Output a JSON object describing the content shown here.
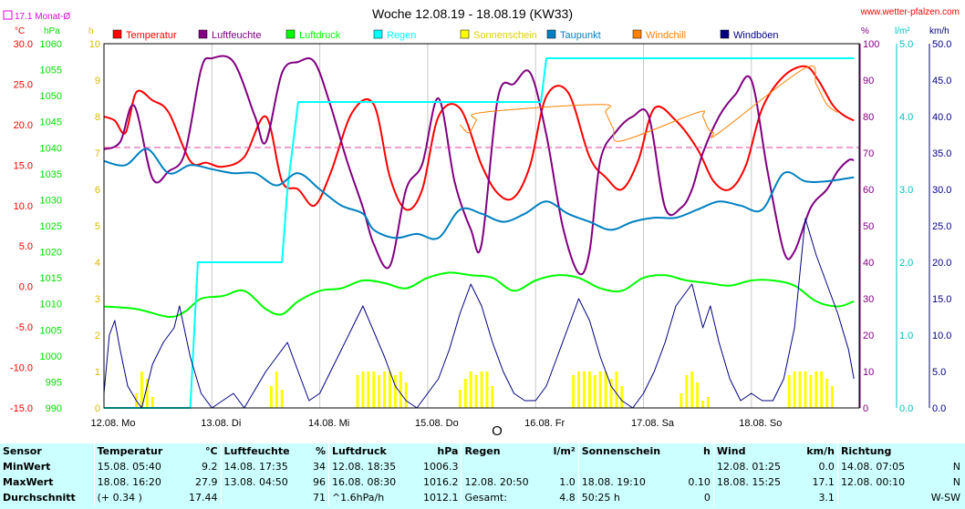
{
  "header": {
    "title": "Woche 12.08.19 - 18.08.19 (KW33)",
    "site": "www.wetter-pfalzen.com",
    "monthly_avg_label": "17.1 Monat-Ø",
    "unit_c": "°C",
    "unit_hpa": "hPa",
    "unit_h": "h",
    "unit_pct": "%",
    "unit_lm2": "l/m²",
    "unit_kmh": "km/h"
  },
  "legend": [
    {
      "label": "Temperatur",
      "color": "#ff0000"
    },
    {
      "label": "Luftfeuchte",
      "color": "#800080"
    },
    {
      "label": "Luftdruck",
      "color": "#00ff00"
    },
    {
      "label": "Regen",
      "color": "#00ffff"
    },
    {
      "label": "Sonnenschein",
      "color": "#ffff00"
    },
    {
      "label": "Taupunkt",
      "color": "#0080c0"
    },
    {
      "label": "Windchill",
      "color": "#ff8000"
    },
    {
      "label": "Windböen",
      "color": "#000080"
    }
  ],
  "chart_data": {
    "type": "line",
    "title": "Woche 12.08.19 - 18.08.19 (KW33)",
    "x_tick_labels": [
      "12.08. Mo",
      "13.08. Di",
      "14.08. Mi",
      "15.08. Do",
      "16.08. Fr",
      "17.08. Sa",
      "18.08. So"
    ],
    "axes": {
      "temperature_c": {
        "min": -15,
        "max": 30,
        "ticks": [
          "30.0",
          "25.0",
          "20.0",
          "15.0",
          "10.0",
          "5.0",
          "0.0",
          "-5.0",
          "-10.0",
          "-15.0"
        ]
      },
      "pressure_hpa": {
        "min": 990,
        "max": 1060,
        "ticks": [
          "1060",
          "1055",
          "1050",
          "1045",
          "1040",
          "1035",
          "1030",
          "1025",
          "1020",
          "1015",
          "1010",
          "1005",
          "1000",
          "995",
          "990"
        ]
      },
      "sunshine_h": {
        "min": 0,
        "max": 10,
        "ticks": [
          "10",
          "9",
          "8",
          "7",
          "6",
          "5",
          "4",
          "3",
          "2",
          "1",
          "0"
        ]
      },
      "humidity_pct": {
        "min": 0,
        "max": 100,
        "ticks": [
          "100",
          "90",
          "80",
          "70",
          "60",
          "50",
          "40",
          "30",
          "20",
          "10",
          "0"
        ]
      },
      "rain_lm2": {
        "min": 0,
        "max": 5,
        "ticks": [
          "5.0",
          "4.0",
          "3.0",
          "2.0",
          "1.0",
          "0.0"
        ]
      },
      "wind_kmh": {
        "min": 0,
        "max": 50,
        "ticks": [
          "50.0",
          "45.0",
          "40.0",
          "35.0",
          "30.0",
          "25.0",
          "20.0",
          "15.0",
          "10.0",
          "5.0",
          "0.0"
        ]
      }
    },
    "monthly_avg_temperature": 17.1,
    "series": [
      {
        "name": "Temperatur",
        "axis": "temperature_c",
        "color": "#ff0000",
        "x": [
          0,
          0.1,
          0.2,
          0.3,
          0.45,
          0.6,
          0.8,
          0.95,
          1.1,
          1.3,
          1.5,
          1.65,
          1.8,
          1.95,
          2.1,
          2.3,
          2.5,
          2.65,
          2.8,
          2.95,
          3.1,
          3.3,
          3.5,
          3.65,
          3.8,
          3.95,
          4.1,
          4.3,
          4.5,
          4.65,
          4.8,
          4.95,
          5.1,
          5.3,
          5.5,
          5.65,
          5.8,
          5.95,
          6.1,
          6.3,
          6.5,
          6.62,
          6.75,
          6.85,
          6.95
        ],
        "values": [
          21,
          20.5,
          19,
          24,
          23,
          21.5,
          15.5,
          15.3,
          14.8,
          16,
          21,
          13,
          12,
          10,
          14,
          21.5,
          22.5,
          13.5,
          9.5,
          12,
          21,
          22,
          15,
          11.5,
          11,
          15,
          23.5,
          24,
          16,
          13.5,
          12,
          15.5,
          22,
          20.5,
          17,
          13,
          12,
          15,
          22,
          26,
          27.2,
          25.5,
          22.5,
          21.2,
          20.5
        ]
      },
      {
        "name": "Luftfeuchte",
        "axis": "humidity_pct",
        "color": "#800080",
        "x": [
          0,
          0.15,
          0.28,
          0.45,
          0.6,
          0.75,
          0.9,
          1.0,
          1.2,
          1.4,
          1.5,
          1.65,
          1.8,
          1.95,
          2.1,
          2.25,
          2.4,
          2.5,
          2.65,
          2.8,
          2.95,
          3.1,
          3.25,
          3.4,
          3.5,
          3.65,
          3.8,
          3.95,
          4.1,
          4.25,
          4.4,
          4.5,
          4.6,
          4.75,
          4.9,
          5.05,
          5.2,
          5.35,
          5.45,
          5.55,
          5.7,
          5.85,
          6.0,
          6.15,
          6.3,
          6.4,
          6.55,
          6.7,
          6.8,
          6.9,
          6.95
        ],
        "values": [
          71,
          73,
          83,
          63,
          65,
          70,
          93,
          96,
          95,
          80,
          73,
          92,
          95,
          95,
          83,
          68,
          55,
          45,
          39,
          60,
          67,
          85,
          62,
          49,
          45,
          85,
          89,
          92,
          75,
          50,
          37,
          43,
          68,
          76,
          80,
          80,
          55,
          55,
          60,
          70,
          80,
          86,
          90,
          65,
          43,
          43,
          55,
          60,
          65,
          68,
          68
        ]
      },
      {
        "name": "Luftdruck",
        "axis": "pressure_hpa",
        "color": "#00ff00",
        "x": [
          0,
          0.3,
          0.6,
          0.75,
          0.9,
          1.1,
          1.3,
          1.5,
          1.65,
          1.8,
          2.0,
          2.2,
          2.4,
          2.6,
          2.8,
          3.0,
          3.2,
          3.4,
          3.6,
          3.8,
          4.0,
          4.2,
          4.4,
          4.6,
          4.8,
          5.0,
          5.2,
          5.4,
          5.6,
          5.8,
          6.0,
          6.2,
          6.4,
          6.6,
          6.8,
          6.95
        ],
        "values": [
          1009.5,
          1009,
          1007.5,
          1008.5,
          1011,
          1011.5,
          1012.5,
          1009,
          1008,
          1010.5,
          1012.5,
          1013,
          1014.5,
          1014,
          1013,
          1015,
          1016,
          1015.5,
          1015,
          1012.5,
          1014.5,
          1015.5,
          1015,
          1013,
          1012.5,
          1015,
          1015.5,
          1014.5,
          1014,
          1013.5,
          1014.5,
          1014.5,
          1013.5,
          1010.5,
          1009.5,
          1010.5
        ]
      },
      {
        "name": "Regen",
        "axis": "rain_lm2",
        "color": "#00ffff",
        "x": [
          0,
          0.8,
          0.87,
          1.65,
          1.7,
          1.8,
          4.05,
          4.1,
          6.95
        ],
        "values": [
          0,
          0,
          2.0,
          2.0,
          3.0,
          4.2,
          4.2,
          4.8,
          4.8
        ]
      },
      {
        "name": "Taupunkt",
        "axis": "temperature_c",
        "color": "#0080c0",
        "x": [
          0,
          0.2,
          0.4,
          0.6,
          0.8,
          1.0,
          1.2,
          1.4,
          1.6,
          1.8,
          2.0,
          2.2,
          2.4,
          2.5,
          2.7,
          2.9,
          3.1,
          3.3,
          3.5,
          3.7,
          3.9,
          4.1,
          4.3,
          4.5,
          4.7,
          4.9,
          5.1,
          5.3,
          5.5,
          5.7,
          5.9,
          6.1,
          6.3,
          6.5,
          6.7,
          6.95
        ],
        "values": [
          15.5,
          15,
          17,
          14,
          15,
          14.5,
          14,
          14,
          12.5,
          14,
          12,
          10,
          9,
          7,
          6,
          6.5,
          6,
          9.5,
          9,
          8,
          9,
          10.5,
          9,
          8,
          7,
          8,
          8.5,
          8.5,
          9.5,
          10.5,
          10,
          9.5,
          14,
          13,
          13,
          13.5
        ]
      },
      {
        "name": "Windchill",
        "axis": "temperature_c",
        "color": "#ff8000",
        "x": [
          3.3,
          3.38,
          3.45,
          3.5,
          4.6,
          4.65,
          4.72,
          4.8,
          5.5,
          5.55,
          5.6,
          5.65,
          5.7,
          6.5,
          6.6,
          6.7,
          6.8
        ],
        "values": [
          20,
          19,
          20.5,
          21.5,
          22.5,
          21.5,
          19.5,
          18,
          21.5,
          21,
          19.5,
          19,
          19,
          27,
          25,
          22.5,
          21.5
        ]
      },
      {
        "name": "Windböen",
        "axis": "wind_kmh",
        "color": "#000080",
        "x": [
          0,
          0.05,
          0.1,
          0.15,
          0.22,
          0.3,
          0.35,
          0.45,
          0.55,
          0.65,
          0.7,
          0.8,
          0.9,
          1.0,
          1.1,
          1.2,
          1.3,
          1.5,
          1.6,
          1.7,
          1.8,
          1.9,
          2.0,
          2.1,
          2.2,
          2.3,
          2.4,
          2.6,
          2.7,
          2.8,
          2.9,
          3.0,
          3.1,
          3.2,
          3.3,
          3.4,
          3.5,
          3.6,
          3.7,
          3.8,
          3.9,
          4.0,
          4.1,
          4.2,
          4.3,
          4.4,
          4.5,
          4.6,
          4.7,
          4.8,
          4.9,
          5.0,
          5.1,
          5.2,
          5.3,
          5.45,
          5.55,
          5.62,
          5.7,
          5.8,
          5.9,
          6.0,
          6.1,
          6.2,
          6.3,
          6.4,
          6.5,
          6.6,
          6.7,
          6.8,
          6.9,
          6.95
        ],
        "values": [
          2,
          10,
          12,
          8,
          3,
          1,
          0,
          6,
          9,
          11,
          14,
          7,
          2,
          0,
          1,
          2,
          0,
          5,
          7,
          9,
          5,
          1,
          2,
          5,
          8,
          11,
          14,
          7,
          3,
          1,
          0,
          2,
          4,
          8,
          13,
          17,
          14,
          9,
          5,
          2,
          1,
          1,
          3,
          7,
          11,
          15,
          12,
          7,
          3,
          1,
          0,
          2,
          5,
          9,
          14,
          17,
          11,
          14,
          9,
          4,
          1,
          2,
          1,
          1,
          4,
          11,
          26,
          21,
          17,
          13,
          8,
          4
        ]
      },
      {
        "name": "Sonnenschein",
        "axis": "sunshine_h",
        "color": "#ffff00",
        "type": "bar",
        "x": [
          0.3,
          0.35,
          0.4,
          0.45,
          1.55,
          1.6,
          1.65,
          2.35,
          2.4,
          2.45,
          2.5,
          2.55,
          2.6,
          2.65,
          2.7,
          2.75,
          2.8,
          3.3,
          3.35,
          3.4,
          3.45,
          3.5,
          3.55,
          3.6,
          4.35,
          4.4,
          4.45,
          4.5,
          4.55,
          4.6,
          4.65,
          4.7,
          4.75,
          4.8,
          5.35,
          5.4,
          5.45,
          5.5,
          5.55,
          5.6,
          6.35,
          6.4,
          6.45,
          6.5,
          6.55,
          6.6,
          6.65,
          6.7,
          6.75
        ],
        "values": [
          0.4,
          1.0,
          0.8,
          0.3,
          0.6,
          1.0,
          0.5,
          0.9,
          1.0,
          1.0,
          1.0,
          0.9,
          1.0,
          1.0,
          0.9,
          1.0,
          0.7,
          0.5,
          0.8,
          1.0,
          0.9,
          1.0,
          1.0,
          0.6,
          0.9,
          1.0,
          1.0,
          1.0,
          0.9,
          1.0,
          1.0,
          0.8,
          1.0,
          0.6,
          0.4,
          0.9,
          1.0,
          0.7,
          0.2,
          0.3,
          0.9,
          1.0,
          1.0,
          1.0,
          0.9,
          1.0,
          1.0,
          0.8,
          0.6
        ]
      }
    ]
  },
  "summary": {
    "headers": [
      "Sensor",
      "Temperatur",
      "°C",
      "Luftfeuchte",
      "%",
      "Luftdruck",
      "hPa",
      "Regen",
      "l/m²",
      "Sonnenschein",
      "h",
      "Wind",
      "km/h",
      "Richtung",
      ""
    ],
    "rows": [
      [
        "MinWert",
        "15.08.  05:40",
        "9.2",
        "14.08.  17:35",
        "34",
        "12.08.  18:35",
        "1006.3",
        "",
        "",
        "",
        "",
        "12.08.  01:25",
        "0.0",
        "14.08.  07:05",
        "N"
      ],
      [
        "MaxWert",
        "18.08.  16:20",
        "27.9",
        "13.08.  04:50",
        "96",
        "16.08.  08:30",
        "1016.2",
        "12.08.  20:50",
        "1.0",
        "18.08.  19:10",
        "0.10",
        "18.08.  15:25",
        "17.1",
        "12.08.  00:10",
        "N"
      ],
      [
        "Durchschnitt",
        "(+ 0.34 )",
        "17.44",
        "",
        "71",
        "^1.6hPa/h",
        "1012.1",
        "Gesamt:",
        "4.8",
        "50:25 h",
        "0",
        "",
        "3.1",
        "",
        "W-SW"
      ]
    ]
  }
}
